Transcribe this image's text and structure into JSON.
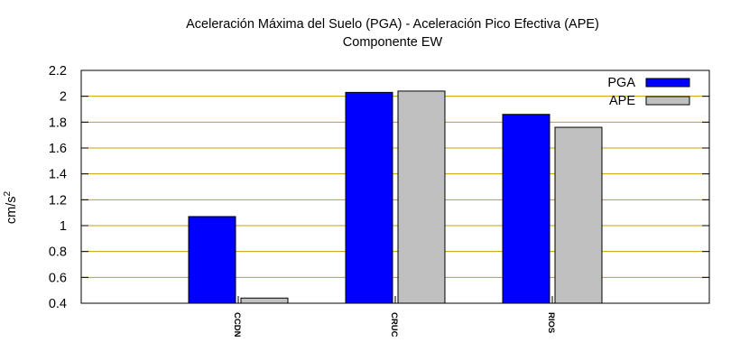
{
  "chart_data": {
    "type": "bar",
    "title": "Aceleración Máxima del Suelo (PGA) -  Aceleración Pico Efectiva (APE)",
    "subtitle": "Componente EW",
    "xlabel": "",
    "ylabel": "cm/s",
    "ylabel_superscript": "2",
    "categories": [
      "CCDN",
      "CRUC",
      "RIOS"
    ],
    "series": [
      {
        "name": "PGA",
        "values": [
          1.07,
          2.03,
          1.86
        ],
        "color": "#0000ff"
      },
      {
        "name": "APE",
        "values": [
          0.44,
          2.04,
          1.76
        ],
        "color": "#c0c0c0"
      }
    ],
    "ylim": [
      0.4,
      2.2
    ],
    "yticks": [
      0.4,
      0.6,
      0.8,
      1,
      1.2,
      1.4,
      1.6,
      1.8,
      2,
      2.2
    ],
    "ytick_labels": [
      "0.4",
      "0.6",
      "0.8",
      "1",
      "1.2",
      "1.4",
      "1.6",
      "1.8",
      "2",
      "2.2"
    ],
    "grid": "horizontal",
    "grid_color": "#c8a000",
    "legend_position": "top-right"
  }
}
